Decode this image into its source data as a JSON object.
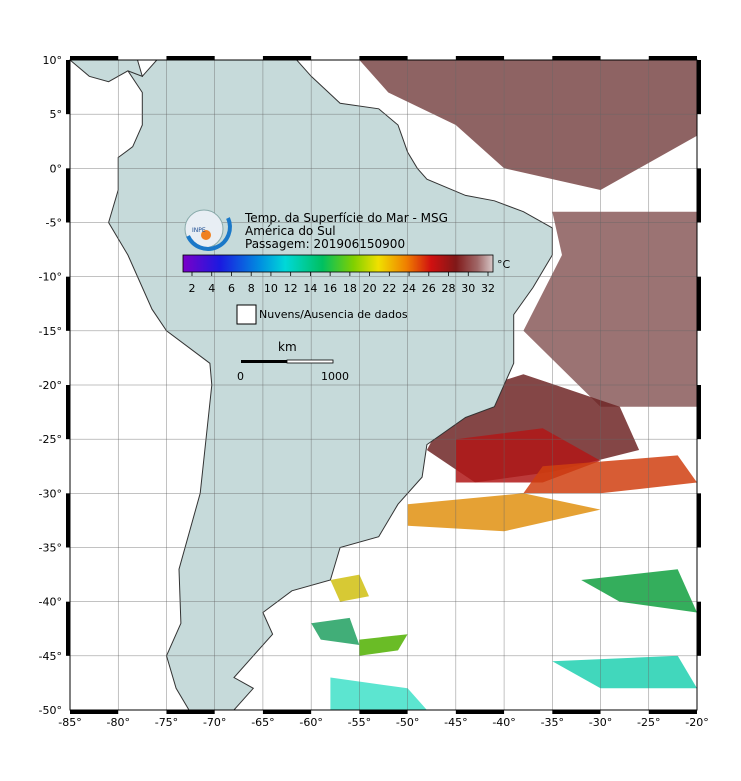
{
  "header": {
    "lines": [
      "Temp. da Superfície do Mar - MSG",
      "América do Sul",
      "Passagem: 201906150900"
    ]
  },
  "colorbar": {
    "unit": "°C",
    "ticks": [
      "2",
      "4",
      "6",
      "8",
      "10",
      "12",
      "14",
      "16",
      "18",
      "20",
      "22",
      "24",
      "26",
      "28",
      "30",
      "32"
    ]
  },
  "legend": {
    "label": "Nuvens/Ausencia de dados"
  },
  "scale": {
    "unit": "km",
    "start": "0",
    "end": "1000"
  },
  "axes": {
    "lat_labels": [
      "10°",
      "5°",
      "0°",
      "-5°",
      "-10°",
      "-15°",
      "-20°",
      "-25°",
      "-30°",
      "-35°",
      "-40°",
      "-45°",
      "-50°"
    ],
    "lon_labels": [
      "-85°",
      "-80°",
      "-75°",
      "-70°",
      "-65°",
      "-60°",
      "-55°",
      "-50°",
      "-45°",
      "-40°",
      "-35°",
      "-30°",
      "-25°",
      "-20°"
    ]
  }
}
